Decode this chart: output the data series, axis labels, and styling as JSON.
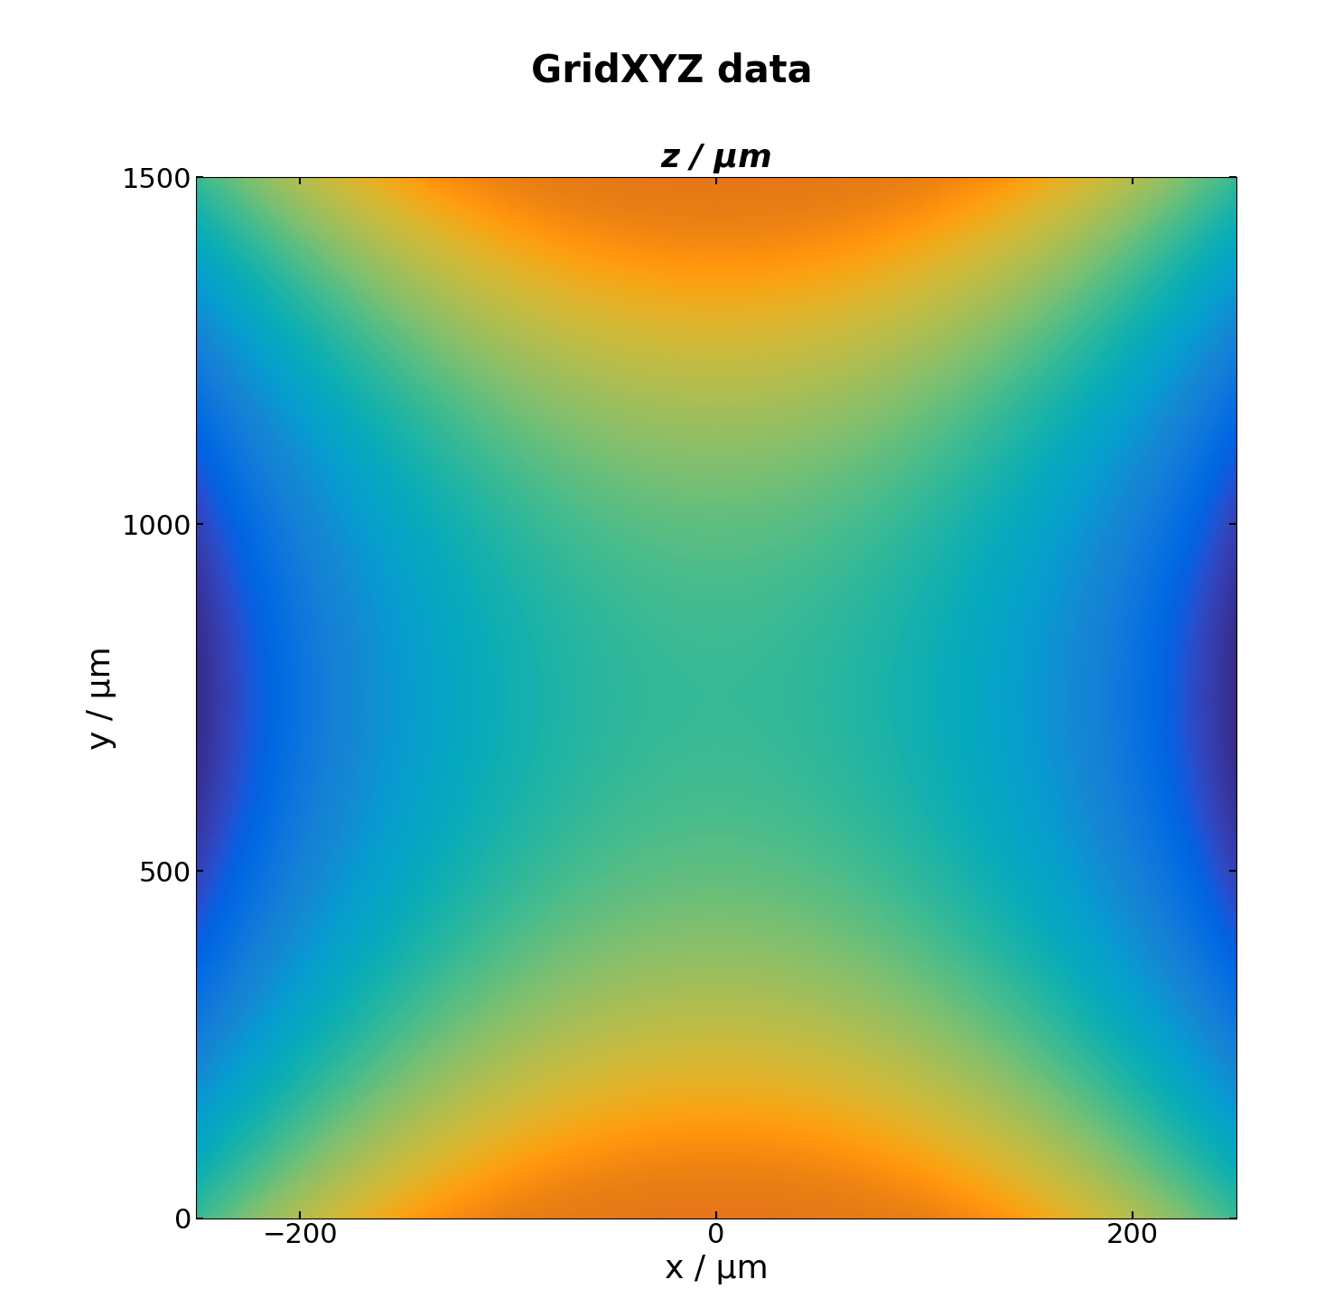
{
  "title": "GridXYZ data",
  "subtitle": "z / μm",
  "xlabel": "x / μm",
  "ylabel": "y / μm",
  "x_min": -250,
  "x_max": 250,
  "y_min": 0,
  "y_max": 1500,
  "x_ticks": [
    -200,
    0,
    200
  ],
  "y_ticks": [
    0,
    500,
    1000,
    1500
  ],
  "y_center": 750,
  "title_fontsize": 30,
  "label_fontsize": 26,
  "tick_fontsize": 22,
  "fig_width": 14.87,
  "fig_height": 14.37,
  "background_color": "#ffffff"
}
